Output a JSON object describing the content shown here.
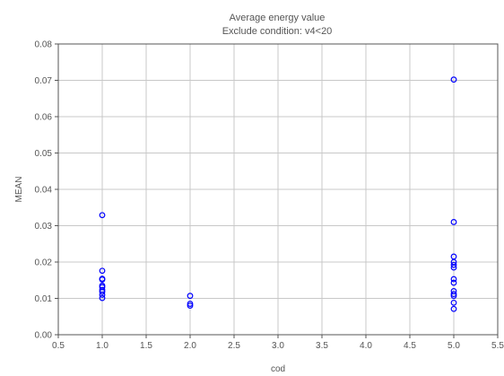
{
  "chart_data": {
    "type": "scatter",
    "title": "Average energy value",
    "subtitle": "Exclude condition: v4<20",
    "xlabel": "cod",
    "ylabel": "MEAN",
    "xlim": [
      0.5,
      5.5
    ],
    "ylim": [
      0.0,
      0.08
    ],
    "x_ticks": [
      "0.5",
      "1.0",
      "1.5",
      "2.0",
      "2.5",
      "3.0",
      "3.5",
      "4.0",
      "4.5",
      "5.0",
      "5.5"
    ],
    "y_ticks": [
      "0.00",
      "0.01",
      "0.02",
      "0.03",
      "0.04",
      "0.05",
      "0.06",
      "0.07",
      "0.08"
    ],
    "grid": true,
    "marker": "circle",
    "series": [
      {
        "color": "#0000ff",
        "points": [
          {
            "x": 1.0,
            "y": 0.0329
          },
          {
            "x": 1.0,
            "y": 0.0176
          },
          {
            "x": 1.0,
            "y": 0.0154
          },
          {
            "x": 1.0,
            "y": 0.0152
          },
          {
            "x": 1.0,
            "y": 0.0135
          },
          {
            "x": 1.0,
            "y": 0.0131
          },
          {
            "x": 1.0,
            "y": 0.0123
          },
          {
            "x": 1.0,
            "y": 0.0118
          },
          {
            "x": 1.0,
            "y": 0.011
          },
          {
            "x": 1.0,
            "y": 0.0101
          },
          {
            "x": 2.0,
            "y": 0.0107
          },
          {
            "x": 2.0,
            "y": 0.0085
          },
          {
            "x": 2.0,
            "y": 0.008
          },
          {
            "x": 5.0,
            "y": 0.0702
          },
          {
            "x": 5.0,
            "y": 0.031
          },
          {
            "x": 5.0,
            "y": 0.0215
          },
          {
            "x": 5.0,
            "y": 0.02
          },
          {
            "x": 5.0,
            "y": 0.0192
          },
          {
            "x": 5.0,
            "y": 0.0185
          },
          {
            "x": 5.0,
            "y": 0.0153
          },
          {
            "x": 5.0,
            "y": 0.0143
          },
          {
            "x": 5.0,
            "y": 0.012
          },
          {
            "x": 5.0,
            "y": 0.0112
          },
          {
            "x": 5.0,
            "y": 0.0107
          },
          {
            "x": 5.0,
            "y": 0.0088
          },
          {
            "x": 5.0,
            "y": 0.0071
          }
        ]
      }
    ]
  }
}
